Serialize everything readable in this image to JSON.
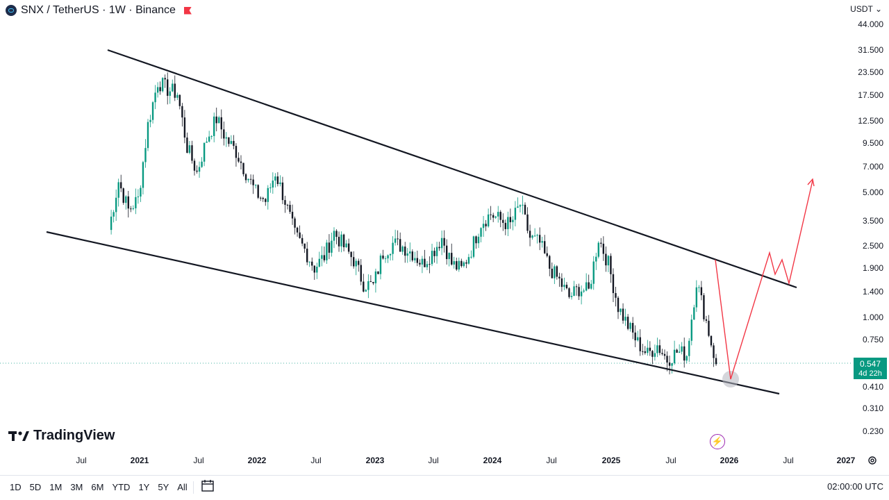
{
  "header": {
    "symbol": "SNX / TetherUS · 1W · Binance"
  },
  "currency": "USDT ⌄",
  "y_ticks": [
    "44.000",
    "31.500",
    "23.500",
    "17.500",
    "12.500",
    "9.500",
    "7.000",
    "5.000",
    "3.500",
    "2.500",
    "1.900",
    "1.400",
    "1.000",
    "0.750",
    "0.410",
    "0.310",
    "0.230"
  ],
  "x_ticks": [
    {
      "label": "Jul",
      "year": false
    },
    {
      "label": "2021",
      "year": true
    },
    {
      "label": "Jul",
      "year": false
    },
    {
      "label": "2022",
      "year": true
    },
    {
      "label": "Jul",
      "year": false
    },
    {
      "label": "2023",
      "year": true
    },
    {
      "label": "Jul",
      "year": false
    },
    {
      "label": "2024",
      "year": true
    },
    {
      "label": "Jul",
      "year": false
    },
    {
      "label": "2025",
      "year": true
    },
    {
      "label": "Jul",
      "year": false
    },
    {
      "label": "2026",
      "year": true
    },
    {
      "label": "Jul",
      "year": false
    },
    {
      "label": "2027",
      "year": true
    }
  ],
  "last_price": {
    "price": "0.547",
    "countdown": "4d 22h"
  },
  "brand": "TradingView",
  "ranges": [
    "1D",
    "5D",
    "1M",
    "3M",
    "6M",
    "YTD",
    "1Y",
    "5Y",
    "All"
  ],
  "clock": "02:00:00 UTC",
  "colors": {
    "up": "#089981",
    "down": "#131722",
    "projection": "#f23645",
    "trendline": "#131722",
    "tag": "#089981"
  },
  "chart_data": {
    "type": "candlestick",
    "scale": "log",
    "ylim": [
      0.23,
      44
    ],
    "series": [
      {
        "name": "SNX / TetherUS · 1W · Binance",
        "points": [
          [
            "2020-09",
            3.1
          ],
          [
            "2020-10",
            5.8
          ],
          [
            "2020-11",
            4.0
          ],
          [
            "2020-12",
            4.6
          ],
          [
            "2021-01",
            12
          ],
          [
            "2021-02",
            21
          ],
          [
            "2021-03",
            19
          ],
          [
            "2021-04",
            18
          ],
          [
            "2021-05",
            9
          ],
          [
            "2021-06",
            6.5
          ],
          [
            "2021-07",
            10
          ],
          [
            "2021-08",
            13
          ],
          [
            "2021-09",
            10
          ],
          [
            "2021-10",
            8.5
          ],
          [
            "2021-11",
            6.5
          ],
          [
            "2021-12",
            5.0
          ],
          [
            "2022-01",
            4.5
          ],
          [
            "2022-02",
            6.5
          ],
          [
            "2022-03",
            4.5
          ],
          [
            "2022-04",
            2.9
          ],
          [
            "2022-05",
            2.4
          ],
          [
            "2022-06",
            1.9
          ],
          [
            "2022-07",
            2.2
          ],
          [
            "2022-08",
            3.0
          ],
          [
            "2022-09",
            2.5
          ],
          [
            "2022-10",
            2.1
          ],
          [
            "2022-11",
            1.55
          ],
          [
            "2022-12",
            1.5
          ],
          [
            "2023-01",
            2.3
          ],
          [
            "2023-02",
            2.6
          ],
          [
            "2023-03",
            2.5
          ],
          [
            "2023-04",
            2.3
          ],
          [
            "2023-05",
            2.0
          ],
          [
            "2023-06",
            2.3
          ],
          [
            "2023-07",
            2.8
          ],
          [
            "2023-08",
            2.0
          ],
          [
            "2023-09",
            1.85
          ],
          [
            "2023-10",
            2.4
          ],
          [
            "2023-11",
            3.4
          ],
          [
            "2023-12",
            3.8
          ],
          [
            "2024-01",
            3.5
          ],
          [
            "2024-02",
            3.3
          ],
          [
            "2024-03",
            4.3
          ],
          [
            "2024-04",
            2.8
          ],
          [
            "2024-05",
            2.6
          ],
          [
            "2024-06",
            1.9
          ],
          [
            "2024-07",
            1.6
          ],
          [
            "2024-08",
            1.3
          ],
          [
            "2024-09",
            1.45
          ],
          [
            "2024-10",
            1.4
          ],
          [
            "2024-11",
            2.8
          ],
          [
            "2024-12",
            2.0
          ],
          [
            "2025-01",
            1.15
          ],
          [
            "2025-02",
            0.9
          ],
          [
            "2025-03",
            0.72
          ],
          [
            "2025-04",
            0.62
          ],
          [
            "2025-05",
            0.7
          ],
          [
            "2025-06",
            0.58
          ],
          [
            "2025-07",
            0.64
          ],
          [
            "2025-08",
            0.62
          ],
          [
            "2025-09",
            1.6
          ],
          [
            "2025-10",
            0.95
          ],
          [
            "2025-11",
            0.547
          ]
        ]
      }
    ],
    "projection": [
      [
        "2025-11",
        0.42
      ],
      [
        "2026-04",
        2.2
      ],
      [
        "2026-05",
        1.6
      ],
      [
        "2026-06",
        1.95
      ],
      [
        "2026-07",
        1.45
      ],
      [
        "2026-09",
        5.5
      ]
    ],
    "trendlines": [
      {
        "from": [
          "2020-11",
          31.5
        ],
        "to": [
          "2026-08",
          1.45
        ]
      },
      {
        "from": [
          "2020-07",
          3.0
        ],
        "to": [
          "2026-03",
          0.39
        ]
      }
    ]
  }
}
